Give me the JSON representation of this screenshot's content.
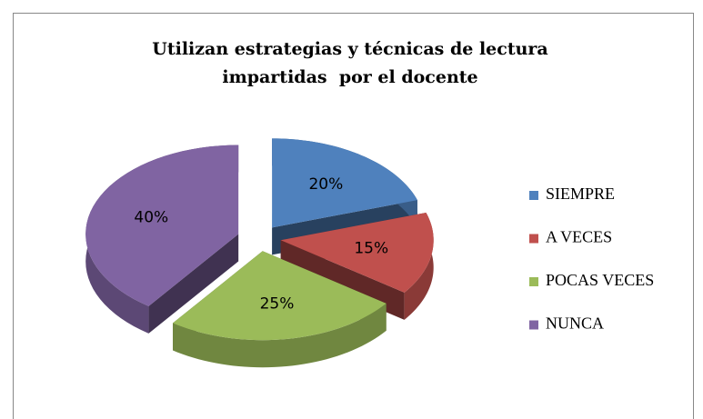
{
  "chart_data": {
    "type": "pie3d",
    "title": [
      "Utilizan estrategias y técnicas de lectura",
      "impartidas  por el docente"
    ],
    "categories": [
      "SIEMPRE",
      "A VECES",
      "POCAS VECES",
      "NUNCA"
    ],
    "values": [
      20,
      15,
      25,
      40
    ],
    "value_labels": [
      "20%",
      "15%",
      "25%",
      "40%"
    ],
    "colors": [
      "#4f81bd",
      "#c0504d",
      "#9bbb59",
      "#8064a2"
    ],
    "legend": "right"
  }
}
